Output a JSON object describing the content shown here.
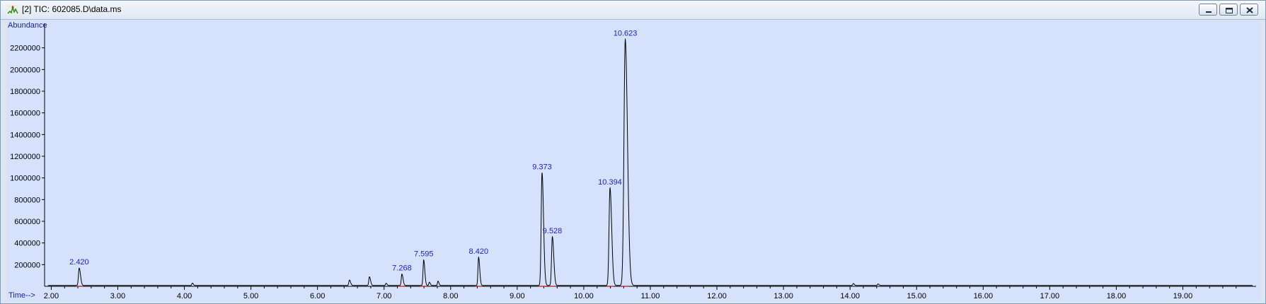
{
  "window": {
    "title": "[2] TIC: 602085.D\\data.ms",
    "icon": "chromatogram-app-icon",
    "controls": [
      "minimize-icon",
      "restore-icon",
      "close-icon"
    ]
  },
  "colors": {
    "plot_background": "#d6e2fb",
    "trace": "#000000",
    "axis_label": "#1a1aa8",
    "peak_label": "#2020c8",
    "baseline_marker": "#e01818"
  },
  "chart_data": {
    "type": "line",
    "title": "",
    "xlabel": "Time-->",
    "ylabel": "Abundance",
    "xlim": [
      1.9,
      20.1
    ],
    "ylim": [
      0,
      2400000
    ],
    "x_ticks": [
      2.0,
      3.0,
      4.0,
      5.0,
      6.0,
      7.0,
      8.0,
      9.0,
      10.0,
      11.0,
      12.0,
      13.0,
      14.0,
      15.0,
      16.0,
      17.0,
      18.0,
      19.0
    ],
    "x_tick_labels": [
      "2.00",
      "3.00",
      "4.00",
      "5.00",
      "6.00",
      "7.00",
      "8.00",
      "9.00",
      "10.00",
      "11.00",
      "12.00",
      "13.00",
      "14.00",
      "15.00",
      "16.00",
      "17.00",
      "18.00",
      "19.00"
    ],
    "y_ticks": [
      200000,
      400000,
      600000,
      800000,
      1000000,
      1200000,
      1400000,
      1600000,
      1800000,
      2000000,
      2200000
    ],
    "y_tick_labels": [
      "200000",
      "400000",
      "600000",
      "800000",
      "1000000",
      "1200000",
      "1400000",
      "1600000",
      "1800000",
      "2000000",
      "2200000"
    ],
    "grid": false,
    "baseline": 8000,
    "peaks": [
      {
        "rt": 2.42,
        "height": 160000,
        "width": 0.014,
        "label": "2.420"
      },
      {
        "rt": 4.12,
        "height": 22000,
        "width": 0.01,
        "label": ""
      },
      {
        "rt": 6.48,
        "height": 50000,
        "width": 0.012,
        "label": ""
      },
      {
        "rt": 6.78,
        "height": 80000,
        "width": 0.012,
        "label": ""
      },
      {
        "rt": 7.03,
        "height": 20000,
        "width": 0.01,
        "label": ""
      },
      {
        "rt": 7.268,
        "height": 105000,
        "width": 0.012,
        "label": "7.268"
      },
      {
        "rt": 7.595,
        "height": 235000,
        "width": 0.012,
        "label": "7.595"
      },
      {
        "rt": 7.68,
        "height": 30000,
        "width": 0.01,
        "label": ""
      },
      {
        "rt": 7.81,
        "height": 40000,
        "width": 0.01,
        "label": ""
      },
      {
        "rt": 8.42,
        "height": 260000,
        "width": 0.012,
        "label": "8.420"
      },
      {
        "rt": 9.373,
        "height": 1040000,
        "width": 0.016,
        "label": "9.373"
      },
      {
        "rt": 9.528,
        "height": 450000,
        "width": 0.015,
        "label": "9.528"
      },
      {
        "rt": 10.394,
        "height": 900000,
        "width": 0.018,
        "label": "10.394"
      },
      {
        "rt": 10.623,
        "height": 2270000,
        "width": 0.024,
        "label": "10.623"
      },
      {
        "rt": 14.05,
        "height": 18000,
        "width": 0.01,
        "label": ""
      },
      {
        "rt": 14.42,
        "height": 14000,
        "width": 0.01,
        "label": ""
      }
    ]
  }
}
